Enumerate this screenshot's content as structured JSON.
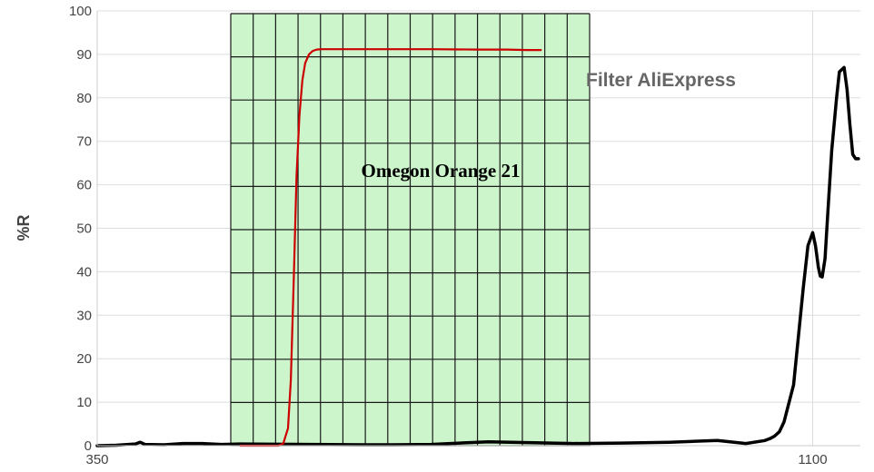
{
  "chart_data": [
    {
      "type": "line",
      "title": "",
      "overlay_label": "Filter  AliExpress",
      "xlabel": "",
      "ylabel": "%R",
      "xlim": [
        350,
        1150
      ],
      "ylim": [
        0,
        100
      ],
      "x_ticks": [
        350,
        1100
      ],
      "y_ticks": [
        0,
        10,
        20,
        30,
        40,
        50,
        60,
        70,
        80,
        90,
        100
      ],
      "grid": true,
      "series": [
        {
          "color": "#000000",
          "x": [
            350,
            370,
            390,
            395,
            400,
            420,
            440,
            460,
            480,
            500,
            630,
            660,
            700,
            760,
            850,
            900,
            950,
            1000,
            1030,
            1050,
            1055,
            1060,
            1065,
            1070,
            1080,
            1090,
            1095,
            1100,
            1103,
            1106,
            1108,
            1110,
            1113,
            1116,
            1120,
            1125,
            1128,
            1133,
            1136,
            1139,
            1142,
            1145,
            1148
          ],
          "y": [
            0,
            0.1,
            0.4,
            0.8,
            0.3,
            0.2,
            0.5,
            0.5,
            0.3,
            0.4,
            0.2,
            0.2,
            0.3,
            0.9,
            0.5,
            0.6,
            0.8,
            1.2,
            0.5,
            1.2,
            1.6,
            2.2,
            3.2,
            5.5,
            14,
            36,
            46,
            49,
            46,
            41,
            39,
            38.8,
            43,
            54,
            68,
            80,
            86,
            87,
            82,
            74,
            67,
            66,
            66
          ]
        },
        {
          "color": "#cc0000",
          "x": [
            500,
            520,
            540,
            545,
            550,
            553,
            556,
            559,
            562,
            565,
            568,
            572,
            576,
            580,
            585,
            590,
            600,
            620,
            650,
            700,
            750,
            780,
            800,
            815
          ],
          "y": [
            0,
            0,
            0,
            0.5,
            4,
            15,
            38,
            62,
            76,
            84,
            88,
            90,
            90.8,
            91.1,
            91.2,
            91.2,
            91.2,
            91.2,
            91.2,
            91.2,
            91.1,
            91.1,
            91,
            91
          ]
        }
      ],
      "inset": {
        "label": "Omegon Orange 21",
        "background": "#ccf5cc"
      }
    }
  ]
}
